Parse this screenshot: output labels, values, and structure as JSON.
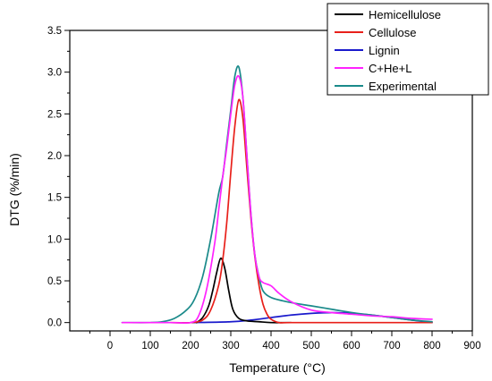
{
  "chart_data": {
    "type": "line",
    "title": "",
    "xlabel": "Temperature (°C)",
    "ylabel": "DTG (%/min)",
    "xlim": [
      -100,
      900
    ],
    "ylim": [
      -0.1,
      3.5
    ],
    "x_ticks": [
      0,
      100,
      200,
      300,
      400,
      500,
      600,
      700,
      800,
      900
    ],
    "y_ticks": [
      0.0,
      0.5,
      1.0,
      1.5,
      2.0,
      2.5,
      3.0,
      3.5
    ],
    "x_tick_labels": [
      "0",
      "100",
      "200",
      "300",
      "400",
      "500",
      "600",
      "700",
      "800",
      "900"
    ],
    "y_tick_labels": [
      "0.0",
      "0.5",
      "1.0",
      "1.5",
      "2.0",
      "2.5",
      "3.0",
      "3.5"
    ],
    "grid": false,
    "legend_position": "top-right",
    "series": [
      {
        "name": "Hemicellulose",
        "color": "#000000",
        "x": [
          215,
          230,
          245,
          255,
          265,
          275,
          285,
          295,
          305,
          320,
          340,
          370,
          400,
          450
        ],
        "y": [
          0.0,
          0.06,
          0.2,
          0.38,
          0.6,
          0.77,
          0.65,
          0.38,
          0.16,
          0.05,
          0.02,
          0.01,
          0.0,
          0.0
        ]
      },
      {
        "name": "Cellulose",
        "color": "#e8201a",
        "x": [
          150,
          200,
          230,
          250,
          270,
          280,
          290,
          300,
          310,
          320,
          330,
          340,
          350,
          360,
          370,
          380,
          390,
          400,
          420,
          450,
          600,
          800
        ],
        "y": [
          0.0,
          0.0,
          0.03,
          0.15,
          0.45,
          0.75,
          1.2,
          1.8,
          2.35,
          2.67,
          2.45,
          1.85,
          1.25,
          0.78,
          0.45,
          0.22,
          0.1,
          0.04,
          0.0,
          0.0,
          0.0,
          0.0
        ]
      },
      {
        "name": "Lignin",
        "color": "#1a1acc",
        "x": [
          200,
          300,
          350,
          400,
          450,
          500,
          550,
          600,
          650,
          700,
          750,
          800
        ],
        "y": [
          0.0,
          0.01,
          0.03,
          0.06,
          0.09,
          0.11,
          0.12,
          0.11,
          0.09,
          0.06,
          0.03,
          0.0
        ]
      },
      {
        "name": "C+He+L",
        "color": "#ff22ff",
        "x": [
          30,
          150,
          200,
          220,
          240,
          260,
          270,
          280,
          290,
          300,
          310,
          320,
          330,
          340,
          350,
          360,
          370,
          380,
          400,
          420,
          450,
          500,
          550,
          600,
          650,
          700,
          750,
          800
        ],
        "y": [
          0.0,
          0.0,
          0.0,
          0.08,
          0.4,
          0.95,
          1.35,
          1.75,
          2.1,
          2.5,
          2.85,
          2.95,
          2.7,
          2.0,
          1.3,
          0.8,
          0.55,
          0.48,
          0.44,
          0.35,
          0.25,
          0.15,
          0.12,
          0.1,
          0.08,
          0.07,
          0.05,
          0.04
        ]
      },
      {
        "name": "Experimental",
        "color": "#1a8a8a",
        "x": [
          30,
          100,
          130,
          160,
          190,
          210,
          230,
          250,
          270,
          280,
          290,
          300,
          310,
          320,
          330,
          340,
          350,
          360,
          370,
          380,
          400,
          430,
          460,
          500,
          550,
          600,
          650,
          700,
          750,
          800
        ],
        "y": [
          0.0,
          0.0,
          0.01,
          0.05,
          0.15,
          0.28,
          0.55,
          1.0,
          1.55,
          1.75,
          2.15,
          2.55,
          2.95,
          3.06,
          2.7,
          2.0,
          1.3,
          0.8,
          0.55,
          0.38,
          0.3,
          0.26,
          0.23,
          0.2,
          0.16,
          0.12,
          0.09,
          0.06,
          0.03,
          0.01
        ]
      }
    ]
  }
}
